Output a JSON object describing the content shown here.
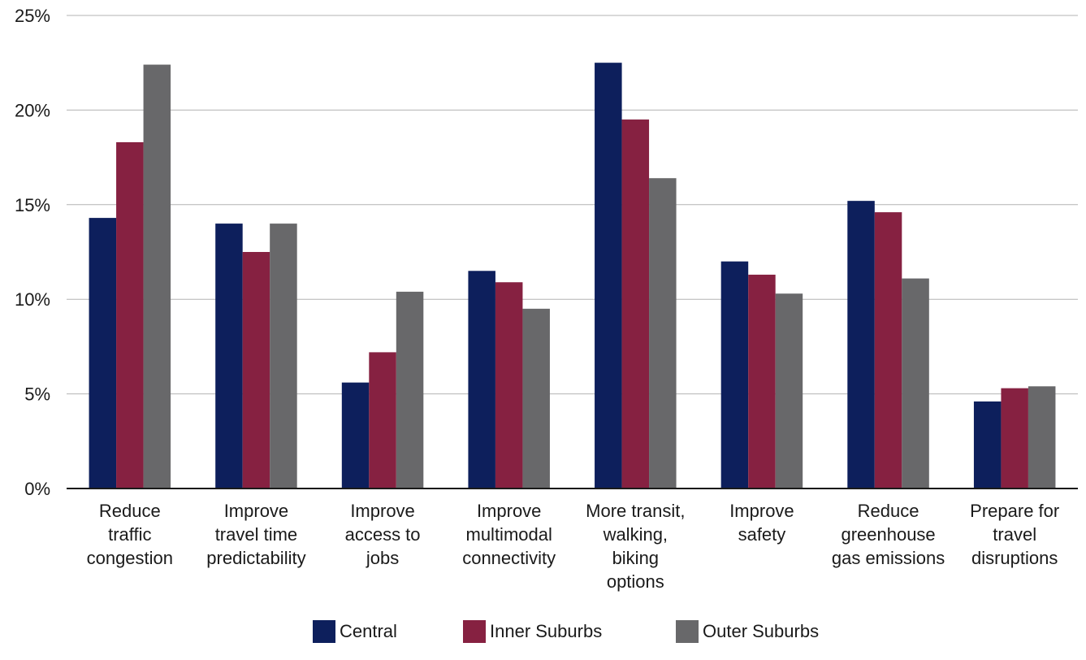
{
  "chart_data": {
    "type": "bar",
    "title": "",
    "xlabel": "",
    "ylabel": "",
    "ylim": [
      0,
      25
    ],
    "yticks": [
      0,
      5,
      10,
      15,
      20,
      25
    ],
    "ytick_labels": [
      "0%",
      "5%",
      "10%",
      "15%",
      "20%",
      "25%"
    ],
    "grid": "horizontal",
    "legend_position": "bottom",
    "categories": [
      [
        "Reduce",
        "traffic",
        "congestion"
      ],
      [
        "Improve",
        "travel time",
        "predictability"
      ],
      [
        "Improve",
        "access to",
        "jobs"
      ],
      [
        "Improve",
        "multimodal",
        "connectivity"
      ],
      [
        "More transit,",
        "walking,",
        "biking",
        "options"
      ],
      [
        "Improve",
        "safety"
      ],
      [
        "Reduce",
        "greenhouse",
        "gas emissions"
      ],
      [
        "Prepare for",
        "travel",
        "disruptions"
      ]
    ],
    "series": [
      {
        "name": "Central",
        "color": "#0d1f5c",
        "values": [
          14.3,
          14.0,
          5.6,
          11.5,
          22.5,
          12.0,
          15.2,
          4.6
        ]
      },
      {
        "name": "Inner Suburbs",
        "color": "#862141",
        "values": [
          18.3,
          12.5,
          7.2,
          10.9,
          19.5,
          11.3,
          14.6,
          5.3
        ]
      },
      {
        "name": "Outer Suburbs",
        "color": "#68686a",
        "values": [
          22.4,
          14.0,
          10.4,
          9.5,
          16.4,
          10.3,
          11.1,
          5.4
        ]
      }
    ]
  }
}
